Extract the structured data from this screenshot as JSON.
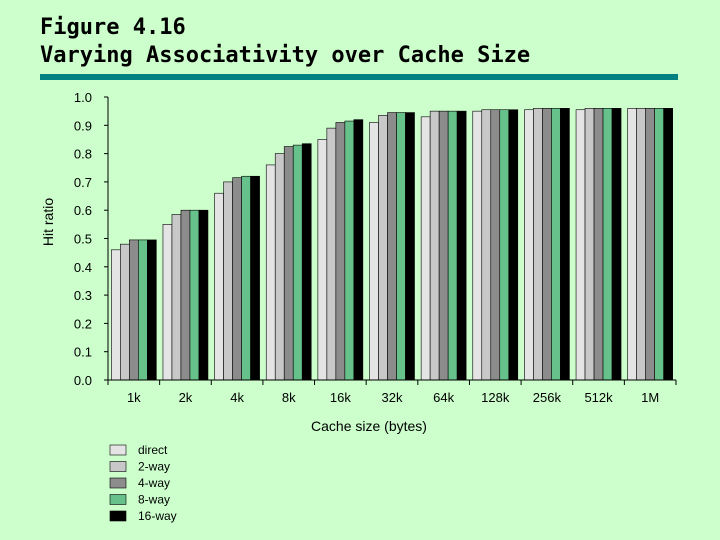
{
  "slide": {
    "title_line1": "Figure 4.16",
    "title_line2": "Varying Associativity over Cache Size"
  },
  "chart_data": {
    "type": "bar",
    "title": "",
    "xlabel": "Cache size (bytes)",
    "ylabel": "Hit ratio",
    "ylim": [
      0,
      1.0
    ],
    "yticks": [
      "0.0",
      "0.1",
      "0.2",
      "0.3",
      "0.4",
      "0.5",
      "0.6",
      "0.7",
      "0.8",
      "0.9",
      "1.0"
    ],
    "categories": [
      "1k",
      "2k",
      "4k",
      "8k",
      "16k",
      "32k",
      "64k",
      "128k",
      "256k",
      "512k",
      "1M"
    ],
    "legend_position": "bottom-left",
    "series": [
      {
        "name": "direct",
        "color": "#e4e4e4",
        "values": [
          0.46,
          0.55,
          0.66,
          0.76,
          0.85,
          0.91,
          0.93,
          0.95,
          0.955,
          0.955,
          0.96
        ]
      },
      {
        "name": "2-way",
        "color": "#c8c8c8",
        "values": [
          0.48,
          0.585,
          0.7,
          0.8,
          0.89,
          0.935,
          0.95,
          0.955,
          0.96,
          0.96,
          0.96
        ]
      },
      {
        "name": "4-way",
        "color": "#8c8c8c",
        "values": [
          0.495,
          0.6,
          0.715,
          0.825,
          0.91,
          0.945,
          0.95,
          0.955,
          0.96,
          0.96,
          0.96
        ]
      },
      {
        "name": "8-way",
        "color": "#66c28a",
        "values": [
          0.495,
          0.6,
          0.72,
          0.83,
          0.915,
          0.945,
          0.95,
          0.955,
          0.96,
          0.96,
          0.96
        ]
      },
      {
        "name": "16-way",
        "color": "#000000",
        "values": [
          0.495,
          0.6,
          0.72,
          0.835,
          0.92,
          0.945,
          0.95,
          0.955,
          0.96,
          0.96,
          0.96
        ]
      }
    ]
  }
}
